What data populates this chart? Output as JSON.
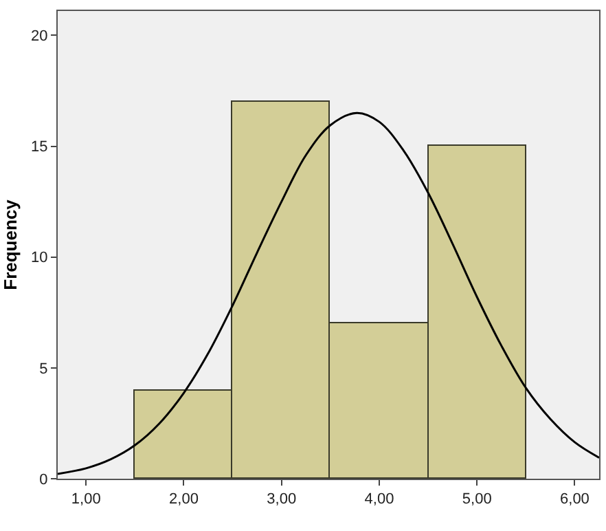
{
  "chart_data": {
    "type": "histogram",
    "ylabel": "Frequency",
    "bins": [
      1.5,
      2.5,
      3.5,
      4.5,
      5.5
    ],
    "values": [
      4,
      17,
      7,
      15
    ],
    "color": "#d3ce97",
    "series": [
      {
        "type": "line",
        "color": "#000000",
        "x": [
          0.71,
          1.0,
          1.25,
          1.5,
          1.75,
          2.0,
          2.25,
          2.5,
          2.75,
          3.0,
          3.25,
          3.5,
          3.77,
          4.0,
          4.25,
          4.5,
          4.75,
          5.0,
          5.25,
          5.5,
          5.75,
          6.0,
          6.25
        ],
        "values": [
          0.22,
          0.47,
          0.87,
          1.51,
          2.49,
          3.87,
          5.66,
          7.82,
          10.2,
          12.5,
          14.6,
          15.95,
          16.5,
          16.1,
          14.8,
          12.9,
          10.6,
          8.2,
          6.0,
          4.1,
          2.7,
          1.65,
          0.95
        ]
      }
    ],
    "xlim": [
      0.71,
      6.25
    ],
    "ylim": [
      0,
      21.1
    ],
    "xticks": [
      {
        "value": 1,
        "label": "1,00"
      },
      {
        "value": 2,
        "label": "2,00"
      },
      {
        "value": 3,
        "label": "3,00"
      },
      {
        "value": 4,
        "label": "4,00"
      },
      {
        "value": 5,
        "label": "5,00"
      },
      {
        "value": 6,
        "label": "6,00"
      }
    ],
    "yticks": [
      0,
      5,
      10,
      15,
      20
    ],
    "grid": false,
    "marker": "none",
    "line_style": "solid"
  }
}
